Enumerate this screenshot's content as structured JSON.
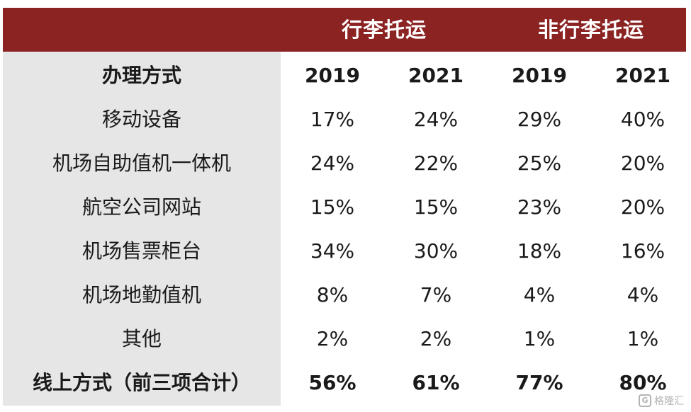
{
  "header": {
    "group_baggage": "行李托运",
    "group_non_baggage": "非行李托运"
  },
  "table": {
    "header_row": {
      "label": "办理方式",
      "col1": "2019",
      "col2": "2021",
      "col3": "2019",
      "col4": "2021"
    },
    "rows": [
      {
        "label": "移动设备",
        "col1": "17%",
        "col2": "24%",
        "col3": "29%",
        "col4": "40%"
      },
      {
        "label": "机场自助值机一体机",
        "col1": "24%",
        "col2": "22%",
        "col3": "25%",
        "col4": "20%"
      },
      {
        "label": "航空公司网站",
        "col1": "15%",
        "col2": "15%",
        "col3": "23%",
        "col4": "20%"
      },
      {
        "label": "机场售票柜台",
        "col1": "34%",
        "col2": "30%",
        "col3": "18%",
        "col4": "16%"
      },
      {
        "label": "机场地勤值机",
        "col1": "8%",
        "col2": "7%",
        "col3": "4%",
        "col4": "4%"
      },
      {
        "label": "其他",
        "col1": "2%",
        "col2": "2%",
        "col3": "1%",
        "col4": "1%"
      }
    ],
    "summary_row": {
      "label": "线上方式（前三项合计）",
      "col1": "56%",
      "col2": "61%",
      "col3": "77%",
      "col4": "80%"
    }
  },
  "watermark": {
    "logo_glyph": "G",
    "text": "格隆汇"
  },
  "colors": {
    "header_band": "#8b2323",
    "label_column": "#e6e6e6",
    "text": "#1a1a1a",
    "header_text": "#ffffff"
  }
}
